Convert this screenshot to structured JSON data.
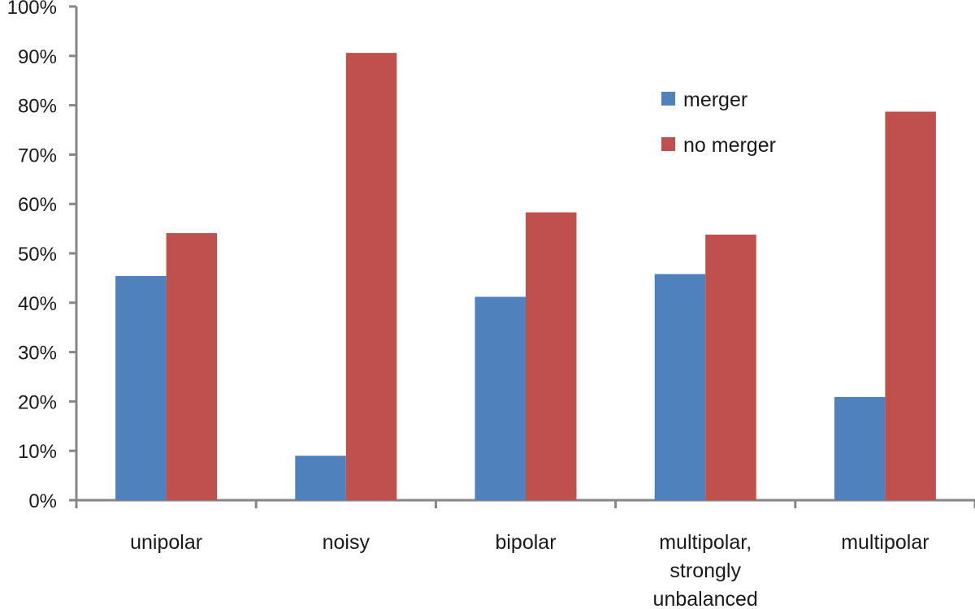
{
  "chart_data": {
    "type": "bar",
    "categories": [
      [
        "unipolar"
      ],
      [
        "noisy"
      ],
      [
        "bipolar"
      ],
      [
        "multipolar,",
        "strongly",
        "unbalanced"
      ],
      [
        "multipolar"
      ]
    ],
    "series": [
      {
        "name": "merger",
        "color": "#4f81bd",
        "values": [
          45.4,
          9.0,
          41.2,
          45.8,
          20.9
        ]
      },
      {
        "name": "no merger",
        "color": "#c0504d",
        "values": [
          54.1,
          90.6,
          58.3,
          53.8,
          78.7
        ]
      }
    ],
    "ylim": [
      0,
      100
    ],
    "yticks": [
      0,
      10,
      20,
      30,
      40,
      50,
      60,
      70,
      80,
      90,
      100
    ],
    "ytick_suffix": "%",
    "grid": false,
    "legend_position": "top-right",
    "title": "",
    "xlabel": "",
    "ylabel": "",
    "axis_color": "#868686"
  }
}
